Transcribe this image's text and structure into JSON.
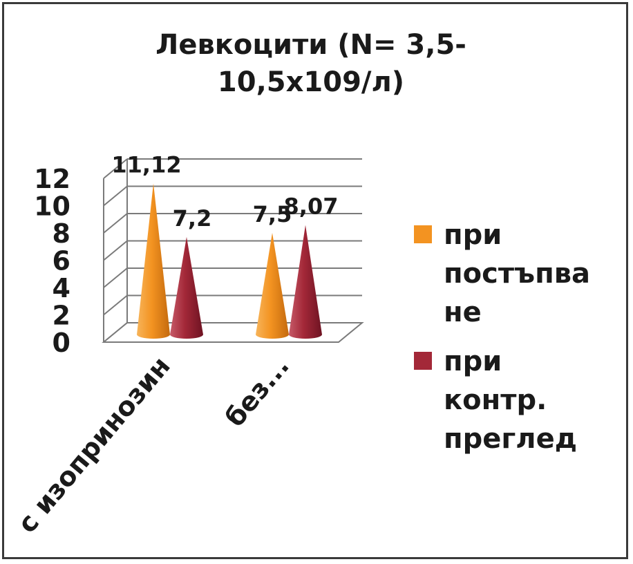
{
  "chart_data": {
    "type": "bar",
    "style": "3d-cone",
    "title": "Левкоцити (N= 3,5-10,5х109/л)",
    "title_lines": [
      "Левкоцити (N= 3,5-",
      "10,5х109/л)"
    ],
    "categories": [
      "с изопринозин",
      "без..."
    ],
    "series": [
      {
        "name": "при постъпване",
        "name_lines": [
          "при",
          "постъпва",
          "не"
        ],
        "values": [
          11.12,
          7.5
        ],
        "labels": [
          "11,12",
          "7,5"
        ],
        "color": "#f39321"
      },
      {
        "name": "при контр. преглед",
        "name_lines": [
          "при",
          "контр.",
          "преглед"
        ],
        "values": [
          7.2,
          8.07
        ],
        "labels": [
          "7,2",
          "8,07"
        ],
        "color": "#a32838"
      }
    ],
    "ylim": [
      0,
      12
    ],
    "yticks": [
      0,
      2,
      4,
      6,
      8,
      10,
      12
    ],
    "ytick_labels": [
      "0",
      "2",
      "4",
      "6",
      "8",
      "10",
      "12"
    ],
    "grid": true,
    "legend": "right"
  }
}
